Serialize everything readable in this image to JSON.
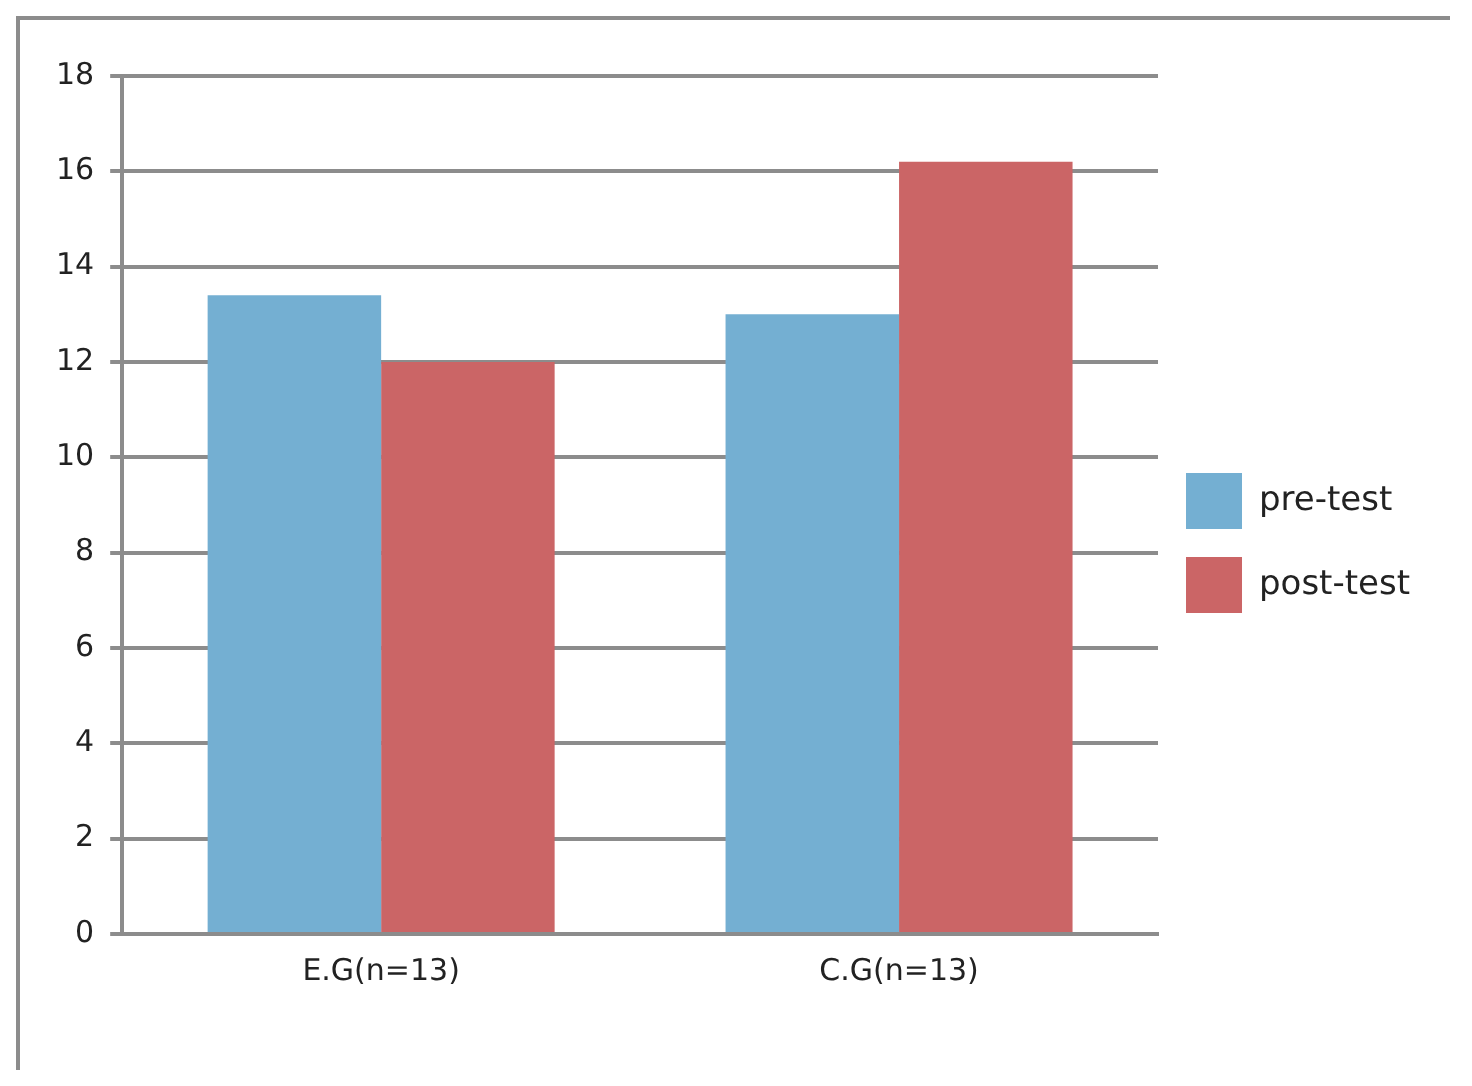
{
  "chart_data": {
    "type": "bar",
    "categories": [
      "E.G(n=13)",
      "C.G(n=13)"
    ],
    "series": [
      {
        "name": "pre-test",
        "color": "#74afd2",
        "values": [
          13.4,
          13.0
        ]
      },
      {
        "name": "post-test",
        "color": "#cb6566",
        "values": [
          12.0,
          16.2
        ]
      }
    ],
    "ylim": [
      0,
      18
    ],
    "yticks": [
      0,
      2,
      4,
      6,
      8,
      10,
      12,
      14,
      16,
      18
    ],
    "grid": "y",
    "legend": "right"
  }
}
